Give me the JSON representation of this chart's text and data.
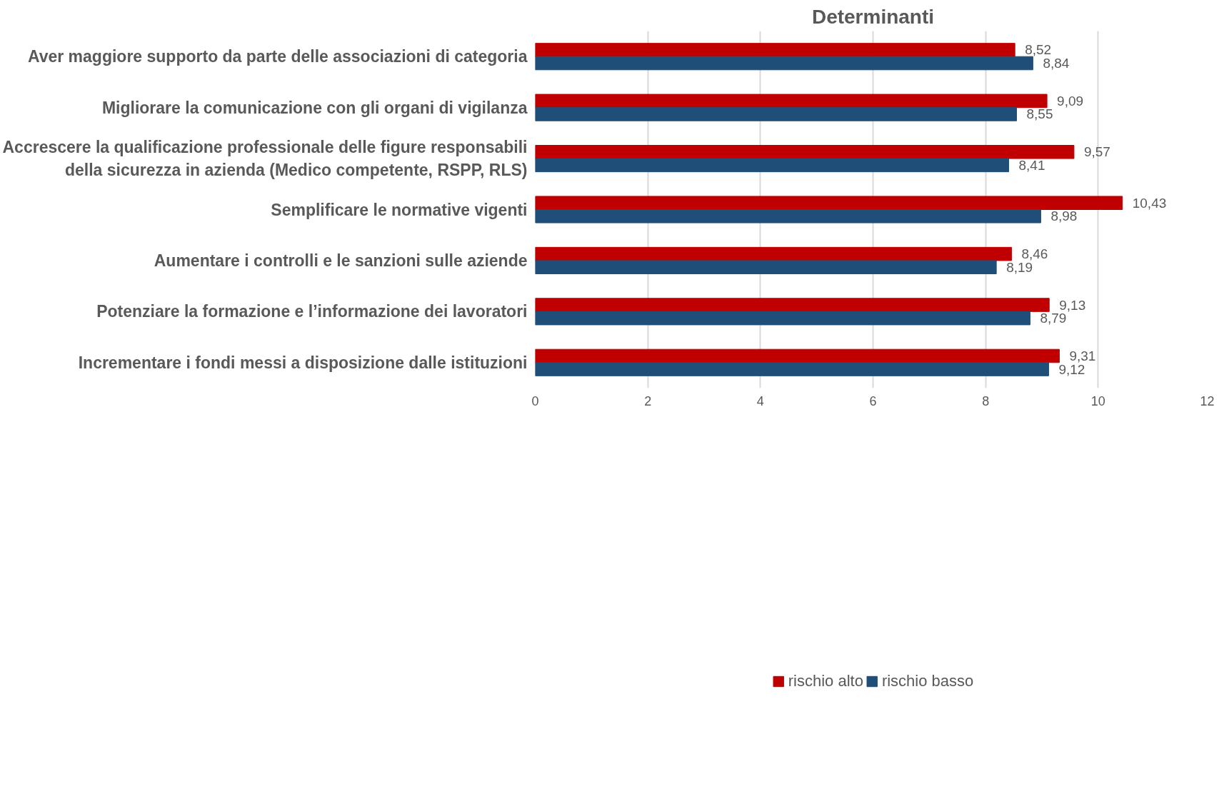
{
  "chart_data": {
    "type": "bar",
    "orientation": "horizontal",
    "title": "Determinanti",
    "categories": [
      "Aver maggiore supporto da parte delle associazioni di categoria",
      "Migliorare la comunicazione con gli organi di vigilanza",
      "Accrescere la qualificazione professionale delle figure responsabili della sicurezza in azienda (Medico competente, RSPP, RLS)",
      "Semplificare le normative vigenti",
      "Aumentare i controlli e le sanzioni sulle aziende",
      "Potenziare la formazione e l’informazione dei lavoratori",
      "Incrementare i fondi messi a disposizione dalle istituzioni"
    ],
    "series": [
      {
        "name": "rischio alto",
        "color": "#c00000",
        "values": [
          8.52,
          9.09,
          9.57,
          10.43,
          8.46,
          9.13,
          9.31
        ],
        "value_labels": [
          "8,52",
          "9,09",
          "9,57",
          "10,43",
          "8,46",
          "9,13",
          "9,31"
        ]
      },
      {
        "name": "rischio basso",
        "color": "#1f4e79",
        "values": [
          8.84,
          8.55,
          8.41,
          8.98,
          8.19,
          8.79,
          9.12
        ],
        "value_labels": [
          "8,84",
          "8,55",
          "8,41",
          "8,98",
          "8,19",
          "8,79",
          "9,12"
        ]
      }
    ],
    "xlim": [
      0,
      12
    ],
    "xticks": [
      0,
      2,
      4,
      6,
      8,
      10,
      12
    ],
    "grid": "x",
    "legend": "bottom"
  }
}
